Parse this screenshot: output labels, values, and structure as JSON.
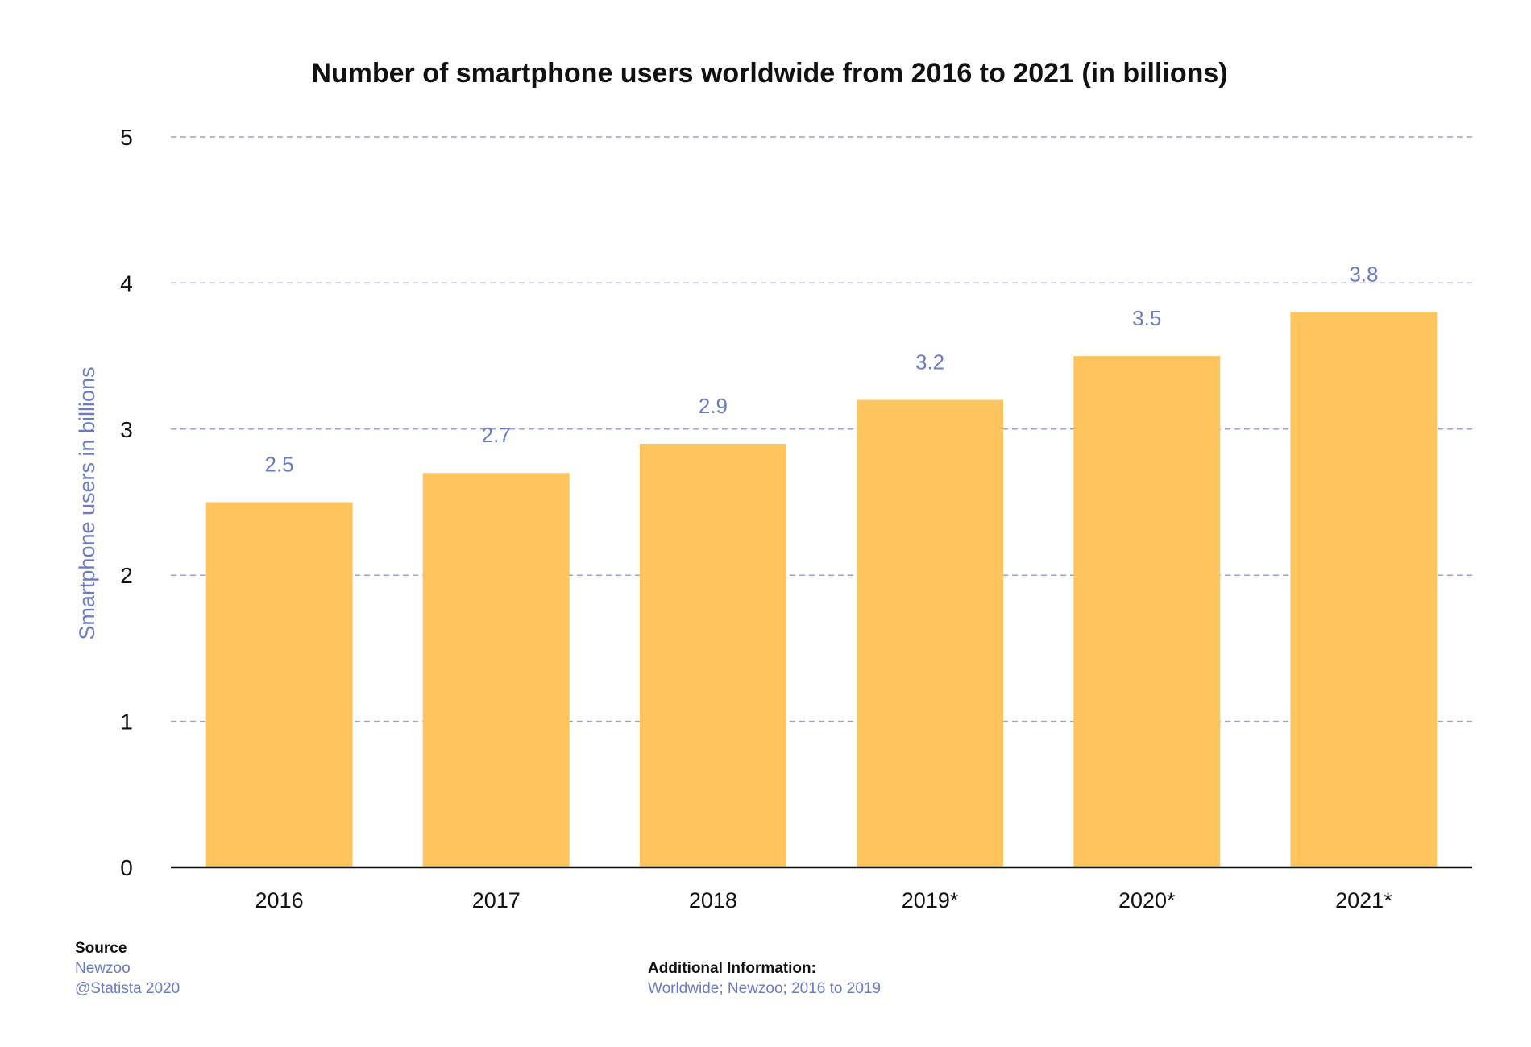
{
  "chart_data": {
    "type": "bar",
    "title": "Number of smartphone users worldwide from 2016 to 2021 (in billions)",
    "categories": [
      "2016",
      "2017",
      "2018",
      "2019*",
      "2020*",
      "2021*"
    ],
    "values": [
      2.5,
      2.7,
      2.9,
      3.2,
      3.5,
      3.8
    ],
    "value_labels": [
      "2.5",
      "2.7",
      "2.9",
      "3.2",
      "3.5",
      "3.8"
    ],
    "xlabel": "",
    "ylabel": "Smartphone users in billions",
    "ylim": [
      0,
      5
    ],
    "yticks": [
      "0",
      "1",
      "2",
      "3",
      "4",
      "5"
    ],
    "grid": true,
    "colors": {
      "bar": "#fec55e",
      "value_label": "#6b7bc4",
      "ylabel": "#6b7bc4",
      "grid": "#9aa3cc",
      "axis": "#111111"
    }
  },
  "footer": {
    "source_heading": "Source",
    "source_lines": [
      "Newzoo",
      "@Statista 2020"
    ],
    "info_heading": "Additional Information:",
    "info_lines": [
      "Worldwide; Newzoo; 2016 to 2019"
    ]
  }
}
